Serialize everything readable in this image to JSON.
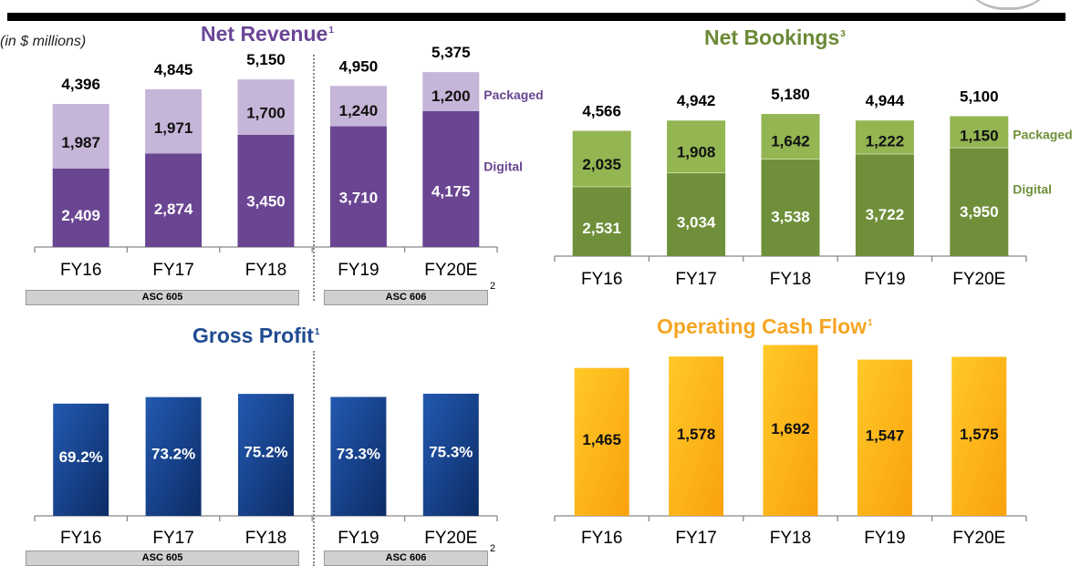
{
  "units_label": "(in $ millions)",
  "asc": {
    "left": "ASC 605",
    "right": "ASC 606",
    "footnote": "2"
  },
  "colors": {
    "revenue_title": "#6b4596",
    "revenue_digital": "#6a4592",
    "revenue_packaged": "#c5b5d8",
    "bookings_title": "#6b8a36",
    "bookings_digital": "#6f8f3a",
    "bookings_packaged": "#93b552",
    "gross_title": "#1e4a92",
    "gross_bar": "#1b4a9a",
    "cash_title": "#f5a623",
    "cash_bar": "#fbb617"
  },
  "chart_data": [
    {
      "id": "net-revenue",
      "type": "bar",
      "stacked": true,
      "title": "Net Revenue",
      "title_footnote": "1",
      "categories": [
        "FY16",
        "FY17",
        "FY18",
        "FY19",
        "FY20E"
      ],
      "totals": [
        4396,
        4845,
        5150,
        4950,
        5375
      ],
      "total_labels": [
        "4,396",
        "4,845",
        "5,150",
        "4,950",
        "5,375"
      ],
      "series": [
        {
          "name": "Digital",
          "values": [
            2409,
            2874,
            3450,
            3710,
            4175
          ],
          "labels": [
            "2,409",
            "2,874",
            "3,450",
            "3,710",
            "4,175"
          ]
        },
        {
          "name": "Packaged",
          "values": [
            1987,
            1971,
            1700,
            1240,
            1200
          ],
          "labels": [
            "1,987",
            "1,971",
            "1,700",
            "1,240",
            "1,200"
          ]
        }
      ]
    },
    {
      "id": "net-bookings",
      "type": "bar",
      "stacked": true,
      "title": "Net Bookings",
      "title_footnote": "3",
      "categories": [
        "FY16",
        "FY17",
        "FY18",
        "FY19",
        "FY20E"
      ],
      "totals": [
        4566,
        4942,
        5180,
        4944,
        5100
      ],
      "total_labels": [
        "4,566",
        "4,942",
        "5,180",
        "4,944",
        "5,100"
      ],
      "series": [
        {
          "name": "Digital",
          "values": [
            2531,
            3034,
            3538,
            3722,
            3950
          ],
          "labels": [
            "2,531",
            "3,034",
            "3,538",
            "3,722",
            "3,950"
          ]
        },
        {
          "name": "Packaged",
          "values": [
            2035,
            1908,
            1642,
            1222,
            1150
          ],
          "labels": [
            "2,035",
            "1,908",
            "1,642",
            "1,222",
            "1,150"
          ]
        }
      ]
    },
    {
      "id": "gross-profit",
      "type": "bar",
      "title": "Gross Profit",
      "title_footnote": "1",
      "categories": [
        "FY16",
        "FY17",
        "FY18",
        "FY19",
        "FY20E"
      ],
      "values": [
        69.2,
        73.2,
        75.2,
        73.3,
        75.3
      ],
      "labels": [
        "69.2%",
        "73.2%",
        "75.2%",
        "73.3%",
        "75.3%"
      ]
    },
    {
      "id": "operating-cash-flow",
      "type": "bar",
      "title": "Operating Cash Flow",
      "title_footnote": "1",
      "categories": [
        "FY16",
        "FY17",
        "FY18",
        "FY19",
        "FY20E"
      ],
      "values": [
        1465,
        1578,
        1692,
        1547,
        1575
      ],
      "labels": [
        "1,465",
        "1,578",
        "1,692",
        "1,547",
        "1,575"
      ]
    }
  ]
}
